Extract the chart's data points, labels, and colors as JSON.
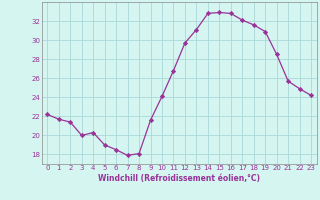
{
  "x": [
    0,
    1,
    2,
    3,
    4,
    5,
    6,
    7,
    8,
    9,
    10,
    11,
    12,
    13,
    14,
    15,
    16,
    17,
    18,
    19,
    20,
    21,
    22,
    23
  ],
  "y": [
    22.2,
    21.7,
    21.4,
    20.0,
    20.3,
    19.0,
    18.5,
    17.9,
    18.1,
    21.6,
    24.1,
    26.8,
    29.7,
    31.1,
    32.8,
    32.9,
    32.8,
    32.1,
    31.6,
    30.9,
    28.5,
    25.7,
    24.9,
    24.2
  ],
  "line_color": "#993399",
  "marker": "D",
  "markersize": 2.2,
  "linewidth": 0.9,
  "bg_color": "#d4f5f0",
  "grid_color": "#aad8d8",
  "xlabel": "Windchill (Refroidissement éolien,°C)",
  "xlabel_color": "#993399",
  "tick_color": "#993399",
  "ylabel_ticks": [
    18,
    20,
    22,
    24,
    26,
    28,
    30,
    32
  ],
  "xlim": [
    -0.5,
    23.5
  ],
  "ylim": [
    17.0,
    34.0
  ],
  "xticks": [
    0,
    1,
    2,
    3,
    4,
    5,
    6,
    7,
    8,
    9,
    10,
    11,
    12,
    13,
    14,
    15,
    16,
    17,
    18,
    19,
    20,
    21,
    22,
    23
  ],
  "tick_fontsize": 5.0,
  "xlabel_fontsize": 5.5
}
